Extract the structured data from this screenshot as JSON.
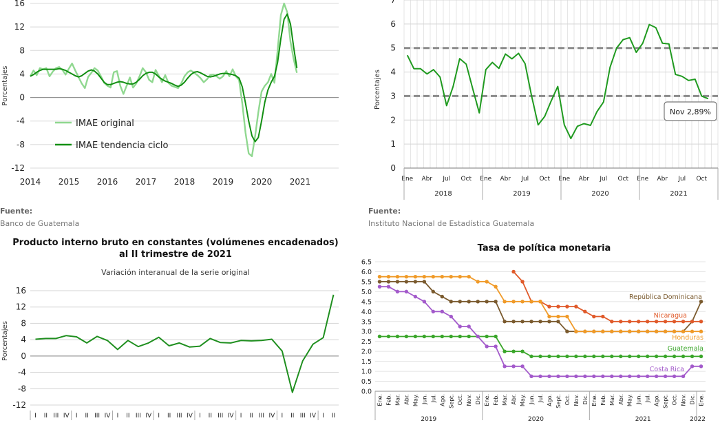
{
  "panels": {
    "tl": {
      "source_head": "Fuente:",
      "source_body": "Banco de Guatemala"
    },
    "tr": {
      "source_head": "Fuente:",
      "source_body": "Instituto Nacional de Estadística Guatemala"
    },
    "bl": {
      "title_line1": "Producto interno bruto en constantes (volúmenes encadenados)",
      "title_line2": "al II trimestre de 2021",
      "subtitle": "Variación interanual de la serie original"
    },
    "br": {
      "title": "Tasa de política monetaria"
    }
  },
  "chart_data": [
    {
      "id": "imae",
      "type": "line",
      "ylabel": "Porcentajes",
      "ylim": [
        -12,
        16
      ],
      "yticks": [
        -12,
        -8,
        -4,
        0,
        4,
        8,
        12,
        16
      ],
      "xlim": [
        2014,
        2022
      ],
      "xticks": [
        2014,
        2015,
        2016,
        2017,
        2018,
        2019,
        2020,
        2021
      ],
      "legend_position": "bottom-left",
      "series": [
        {
          "name": "IMAE original",
          "color": "#90d890",
          "x_start": 2014.0,
          "x_step": 0.0833333,
          "values": [
            3.6,
            4.6,
            3.8,
            5.0,
            4.8,
            5.0,
            3.6,
            4.4,
            5.0,
            5.2,
            4.7,
            3.9,
            4.9,
            5.8,
            4.6,
            3.5,
            2.4,
            1.6,
            3.5,
            4.2,
            5.0,
            4.6,
            3.6,
            2.5,
            2.0,
            1.7,
            4.3,
            4.5,
            2.0,
            0.6,
            2.0,
            3.4,
            1.7,
            2.4,
            3.6,
            5.0,
            4.3,
            3.0,
            2.6,
            4.7,
            3.7,
            2.6,
            3.8,
            2.5,
            2.0,
            1.8,
            1.6,
            2.4,
            3.6,
            4.3,
            4.6,
            4.2,
            3.8,
            3.3,
            2.6,
            3.1,
            3.8,
            3.9,
            3.6,
            3.2,
            3.6,
            4.5,
            3.6,
            4.8,
            3.6,
            3.0,
            -1.0,
            -6.0,
            -9.5,
            -10.0,
            -6.5,
            -2.5,
            1.0,
            2.0,
            2.6,
            4.0,
            2.5,
            8.0,
            14.0,
            16.0,
            14.5,
            9.5,
            6.5,
            4.2
          ]
        },
        {
          "name": "IMAE tendencia ciclo",
          "color": "#128f12",
          "x_start": 2014.0,
          "x_step": 0.0833333,
          "values": [
            3.6,
            3.9,
            4.3,
            4.6,
            4.8,
            4.8,
            4.8,
            4.8,
            4.8,
            4.9,
            4.8,
            4.6,
            4.3,
            4.0,
            3.7,
            3.5,
            3.7,
            4.1,
            4.5,
            4.7,
            4.5,
            4.0,
            3.3,
            2.6,
            2.2,
            2.2,
            2.4,
            2.6,
            2.7,
            2.6,
            2.4,
            2.3,
            2.3,
            2.6,
            3.1,
            3.7,
            4.1,
            4.3,
            4.3,
            4.0,
            3.5,
            3.1,
            2.8,
            2.6,
            2.4,
            2.1,
            1.9,
            2.1,
            2.6,
            3.3,
            3.9,
            4.3,
            4.4,
            4.2,
            3.9,
            3.6,
            3.5,
            3.6,
            3.8,
            4.0,
            4.1,
            4.1,
            4.0,
            3.9,
            3.7,
            3.3,
            1.8,
            -1.0,
            -4.0,
            -6.5,
            -7.5,
            -6.8,
            -4.0,
            -0.8,
            1.3,
            2.6,
            3.6,
            6.0,
            10.0,
            13.3,
            14.2,
            12.5,
            8.5,
            5.0
          ]
        }
      ]
    },
    {
      "id": "inflation",
      "type": "line",
      "ylabel": "Porcentajes",
      "ylim": [
        0,
        7
      ],
      "yticks": [
        0,
        1,
        2,
        3,
        4,
        5,
        6,
        7
      ],
      "month_labels": [
        "Ene",
        "Abr",
        "Jul",
        "Oct"
      ],
      "years": [
        "2018",
        "2019",
        "2020",
        "2021"
      ],
      "reference_lines": [
        3,
        5
      ],
      "annotation": "Nov 2,89%",
      "series": [
        {
          "name": "",
          "color": "#1f9a1f",
          "values": [
            4.7,
            4.14,
            4.14,
            3.92,
            4.1,
            3.79,
            2.6,
            3.4,
            4.56,
            4.33,
            3.3,
            2.3,
            4.1,
            4.4,
            4.15,
            4.75,
            4.55,
            4.78,
            4.35,
            3.0,
            1.8,
            2.15,
            2.8,
            3.4,
            1.8,
            1.23,
            1.74,
            1.85,
            1.78,
            2.35,
            2.75,
            4.2,
            5.0,
            5.35,
            5.43,
            4.82,
            5.2,
            5.98,
            5.85,
            5.2,
            5.17,
            3.9,
            3.82,
            3.65,
            3.7,
            3.0,
            2.89
          ]
        }
      ]
    },
    {
      "id": "gdp",
      "type": "line",
      "ylabel": "Porcentajes",
      "ylim": [
        -12,
        16
      ],
      "yticks": [
        -12,
        -8,
        -4,
        0,
        4,
        8,
        12,
        16
      ],
      "quarter_labels": [
        "I",
        "II",
        "III",
        "IV"
      ],
      "series": [
        {
          "name": "",
          "color": "#1f8f1f",
          "values": [
            4.1,
            4.3,
            4.3,
            5.0,
            4.7,
            3.2,
            4.8,
            3.8,
            1.6,
            3.8,
            2.3,
            3.2,
            4.6,
            2.5,
            3.2,
            2.2,
            2.4,
            4.3,
            3.3,
            3.2,
            3.8,
            3.7,
            3.8,
            4.1,
            1.2,
            -8.9,
            -1.2,
            2.9,
            4.5,
            15.0
          ]
        }
      ]
    },
    {
      "id": "policy_rate",
      "type": "line",
      "title": "Tasa de política monetaria",
      "ylim": [
        0.0,
        6.5
      ],
      "yticks": [
        "0.0",
        "0.5",
        "1.0",
        "1.5",
        "2.0",
        "2.5",
        "3.0",
        "3.5",
        "4.0",
        "4.5",
        "5.0",
        "5.5",
        "6.0",
        "6.5"
      ],
      "month_labels": [
        "Ene.",
        "Feb.",
        "Mar.",
        "Abr.",
        "May.",
        "Jun.",
        "Jul.",
        "Ago.",
        "Sept.",
        "Oct.",
        "Nov.",
        "Dic.",
        "Ene.",
        "Feb.",
        "Mar.",
        "Abr.",
        "May.",
        "Jun.",
        "Jul.",
        "Ago.",
        "Sept.",
        "Oct.",
        "Nov.",
        "Dic.",
        "Ene.",
        "Feb.",
        "Mar.",
        "Abr.",
        "May.",
        "Jun.",
        "Jul.",
        "Ago.",
        "Sept.",
        "Oct.",
        "Nov.",
        "Dic.",
        "Ene."
      ],
      "years": [
        "2019",
        "2020",
        "2021",
        "2022"
      ],
      "series": [
        {
          "name": "República Dominicana",
          "color": "#7a5a2e",
          "values": [
            5.5,
            5.5,
            5.5,
            5.5,
            5.5,
            5.5,
            5.0,
            4.75,
            4.5,
            4.5,
            4.5,
            4.5,
            4.5,
            4.5,
            3.5,
            3.5,
            3.5,
            3.5,
            3.5,
            3.5,
            3.5,
            3.0,
            3.0,
            3.0,
            3.0,
            3.0,
            3.0,
            3.0,
            3.0,
            3.0,
            3.0,
            3.0,
            3.0,
            3.0,
            3.0,
            3.5,
            4.5
          ]
        },
        {
          "name": "Nicaragua",
          "color": "#e05a2a",
          "values": [
            null,
            null,
            null,
            null,
            null,
            null,
            null,
            null,
            null,
            null,
            null,
            null,
            null,
            null,
            null,
            6.0,
            5.5,
            4.5,
            4.5,
            4.25,
            4.25,
            4.25,
            4.25,
            4.0,
            3.75,
            3.75,
            3.5,
            3.5,
            3.5,
            3.5,
            3.5,
            3.5,
            3.5,
            3.5,
            3.5,
            3.5,
            3.5
          ]
        },
        {
          "name": "Honduras",
          "color": "#f09a28",
          "values": [
            5.75,
            5.75,
            5.75,
            5.75,
            5.75,
            5.75,
            5.75,
            5.75,
            5.75,
            5.75,
            5.75,
            5.5,
            5.5,
            5.25,
            4.5,
            4.5,
            4.5,
            4.5,
            4.5,
            3.75,
            3.75,
            3.75,
            3.0,
            3.0,
            3.0,
            3.0,
            3.0,
            3.0,
            3.0,
            3.0,
            3.0,
            3.0,
            3.0,
            3.0,
            3.0,
            3.0,
            3.0
          ]
        },
        {
          "name": "Guatemala",
          "color": "#3aa62a",
          "values": [
            2.75,
            2.75,
            2.75,
            2.75,
            2.75,
            2.75,
            2.75,
            2.75,
            2.75,
            2.75,
            2.75,
            2.75,
            2.75,
            2.75,
            2.0,
            2.0,
            2.0,
            1.75,
            1.75,
            1.75,
            1.75,
            1.75,
            1.75,
            1.75,
            1.75,
            1.75,
            1.75,
            1.75,
            1.75,
            1.75,
            1.75,
            1.75,
            1.75,
            1.75,
            1.75,
            1.75,
            1.75
          ]
        },
        {
          "name": "Costa Rica",
          "color": "#a35acb",
          "values": [
            5.25,
            5.25,
            5.0,
            5.0,
            4.75,
            4.5,
            4.0,
            4.0,
            3.75,
            3.25,
            3.25,
            2.75,
            2.25,
            2.25,
            1.25,
            1.25,
            1.25,
            0.75,
            0.75,
            0.75,
            0.75,
            0.75,
            0.75,
            0.75,
            0.75,
            0.75,
            0.75,
            0.75,
            0.75,
            0.75,
            0.75,
            0.75,
            0.75,
            0.75,
            0.75,
            1.25,
            1.25
          ]
        }
      ]
    }
  ]
}
